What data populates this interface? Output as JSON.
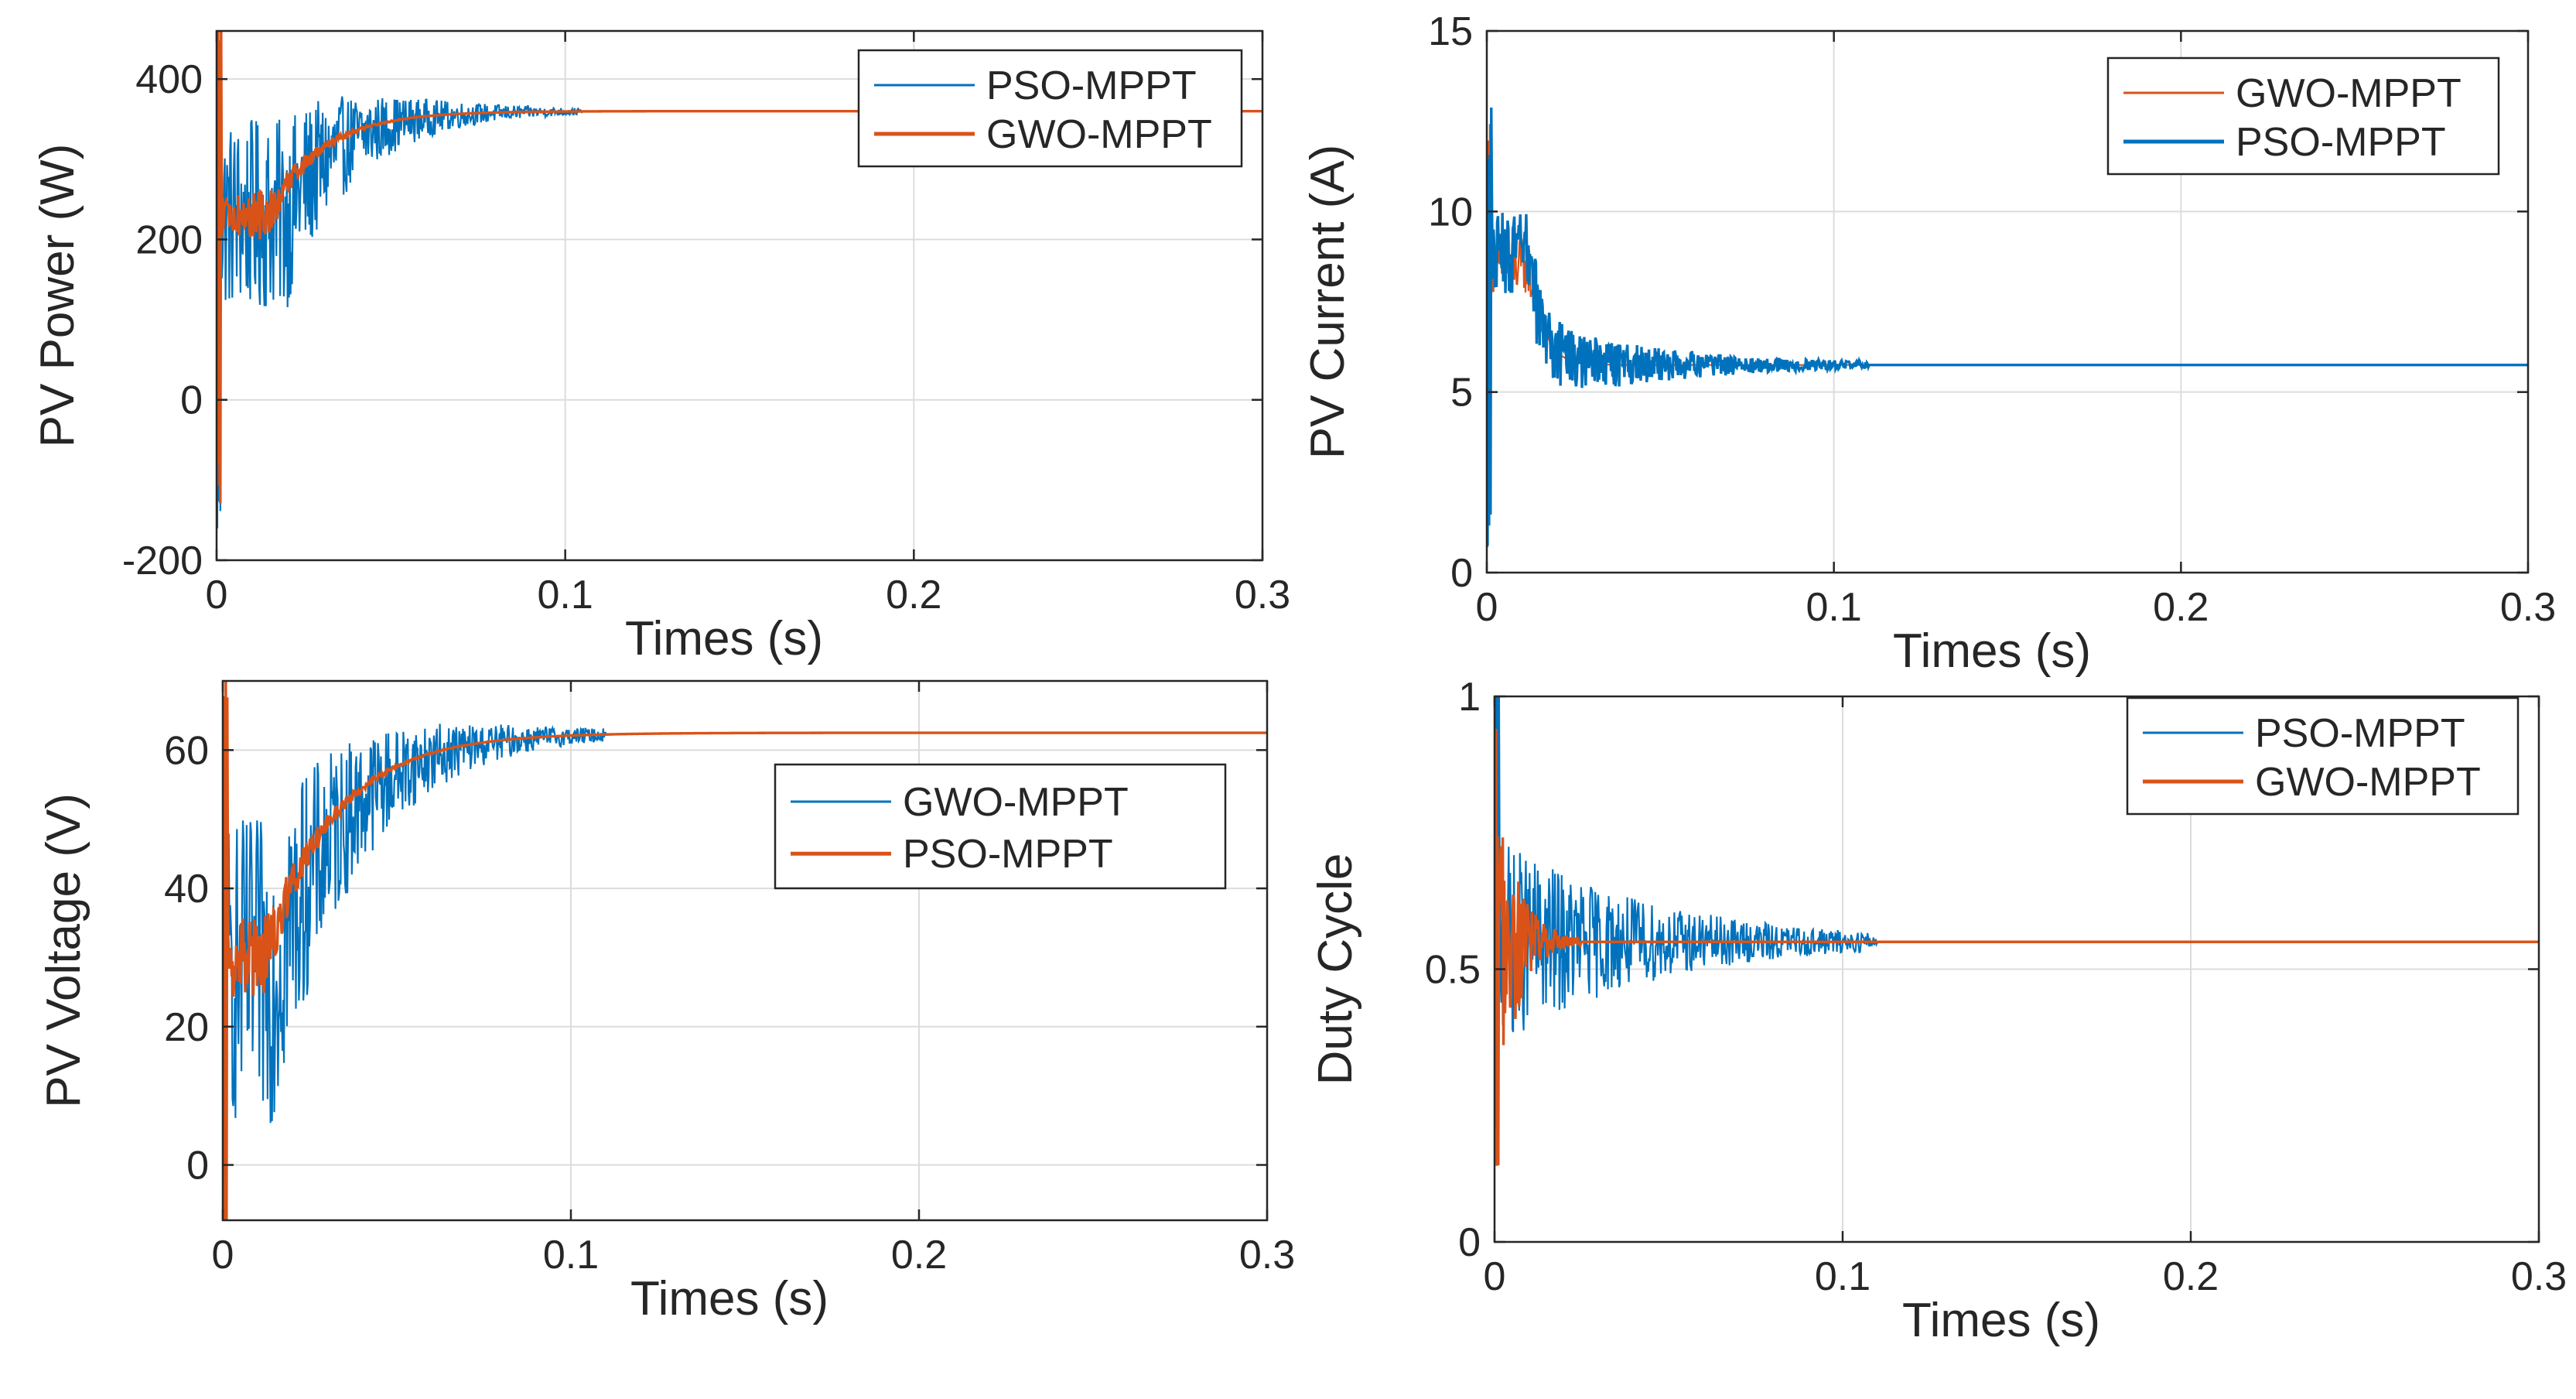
{
  "chart_data": [
    {
      "type": "line",
      "xlabel": "Times (s)",
      "ylabel": "PV Power (W)",
      "xlim": [
        0,
        0.3
      ],
      "ylim": [
        -200,
        460
      ],
      "xticks": [
        0,
        0.1,
        0.2,
        0.3
      ],
      "xtick_labels": [
        "0",
        "0.1",
        "0.2",
        "0.3"
      ],
      "yticks": [
        -200,
        0,
        200,
        400
      ],
      "ytick_labels": [
        "-200",
        "0",
        "200",
        "400"
      ],
      "grid": true,
      "legend_position": "top-right",
      "series": [
        {
          "name": "PSO-MPPT",
          "color": "#0072BD",
          "shape": {
            "start": 0,
            "spike_low": -90,
            "spike_high": 240,
            "plateau": 230,
            "rise_t": 0.02,
            "final": 360,
            "tau": 0.015,
            "noise": 120,
            "noise_decay": 0.025,
            "settle_t": 0.105
          }
        },
        {
          "name": "GWO-MPPT",
          "color": "#D95319",
          "shape": {
            "start": 0,
            "spike_low": -100,
            "spike_high": 450,
            "plateau": 230,
            "rise_t": 0.015,
            "final": 360,
            "tau": 0.015,
            "noise": 30,
            "noise_decay": 0.01,
            "settle_t": 0.06
          }
        }
      ]
    },
    {
      "type": "line",
      "xlabel": "Times (s)",
      "ylabel": "PV Current (A)",
      "xlim": [
        0,
        0.3
      ],
      "ylim": [
        0,
        15
      ],
      "xticks": [
        0,
        0.1,
        0.2,
        0.3
      ],
      "xtick_labels": [
        "0",
        "0.1",
        "0.2",
        "0.3"
      ],
      "yticks": [
        0,
        5,
        10,
        15
      ],
      "ytick_labels": [
        "0",
        "5",
        "10",
        "15"
      ],
      "grid": true,
      "legend_position": "top-right",
      "series": [
        {
          "name": "GWO-MPPT",
          "color": "#D95319",
          "shape": {
            "start": 1.5,
            "spike_low": 1.5,
            "spike_high": 12.5,
            "plateau": 8.5,
            "rise_t": 0.012,
            "final": 5.75,
            "tau": 0.004,
            "noise": 0.8,
            "noise_decay": 0.006,
            "settle_t": 0.02
          }
        },
        {
          "name": "PSO-MPPT",
          "color": "#0072BD",
          "shape": {
            "start": 1.5,
            "spike_low": 1.5,
            "spike_high": 12.5,
            "plateau": 8.8,
            "rise_t": 0.012,
            "final": 5.75,
            "tau": 0.004,
            "noise": 1.2,
            "noise_decay": 0.04,
            "settle_t": 0.11
          }
        }
      ]
    },
    {
      "type": "line",
      "xlabel": "Times (s)",
      "ylabel": "PV Voltage (V)",
      "xlim": [
        0,
        0.3
      ],
      "ylim": [
        -8,
        70
      ],
      "xticks": [
        0,
        0.1,
        0.2,
        0.3
      ],
      "xtick_labels": [
        "0",
        "0.1",
        "0.2",
        "0.3"
      ],
      "yticks": [
        0,
        20,
        40,
        60
      ],
      "ytick_labels": [
        "0",
        "20",
        "40",
        "60"
      ],
      "grid": true,
      "legend_position": "center-right",
      "series": [
        {
          "name": "GWO-MPPT",
          "color": "#0072BD",
          "shape": {
            "start": 0,
            "spike_low": -5,
            "spike_high": 45,
            "plateau": 28,
            "rise_t": 0.015,
            "final": 62.5,
            "tau": 0.02,
            "noise": 22,
            "noise_decay": 0.03,
            "settle_t": 0.11
          }
        },
        {
          "name": "PSO-MPPT",
          "color": "#D95319",
          "shape": {
            "start": 0,
            "spike_low": -8,
            "spike_high": 68,
            "plateau": 30,
            "rise_t": 0.012,
            "final": 62.5,
            "tau": 0.02,
            "noise": 6,
            "noise_decay": 0.012,
            "settle_t": 0.07
          }
        }
      ]
    },
    {
      "type": "line",
      "xlabel": "Times (s)",
      "ylabel": "Duty Cycle",
      "xlim": [
        0,
        0.3
      ],
      "ylim": [
        0,
        1
      ],
      "xticks": [
        0,
        0.1,
        0.2,
        0.3
      ],
      "xtick_labels": [
        "0",
        "0.1",
        "0.2",
        "0.3"
      ],
      "yticks": [
        0,
        0.5,
        1
      ],
      "ytick_labels": [
        "0",
        "0.5",
        "1"
      ],
      "grid": true,
      "legend_position": "top-right",
      "series": [
        {
          "name": "PSO-MPPT",
          "color": "#0072BD",
          "shape": {
            "start": 0.55,
            "spike_low": 0.35,
            "spike_high": 1.0,
            "plateau": 0.55,
            "rise_t": 0.004,
            "final": 0.55,
            "tau": 0.002,
            "noise": 0.18,
            "noise_decay": 0.045,
            "settle_t": 0.11
          }
        },
        {
          "name": "GWO-MPPT",
          "color": "#D95319",
          "shape": {
            "start": 0.55,
            "spike_low": 0.1,
            "spike_high": 0.78,
            "plateau": 0.55,
            "rise_t": 0.004,
            "final": 0.55,
            "tau": 0.002,
            "noise": 0.2,
            "noise_decay": 0.006,
            "settle_t": 0.025
          }
        }
      ]
    }
  ]
}
